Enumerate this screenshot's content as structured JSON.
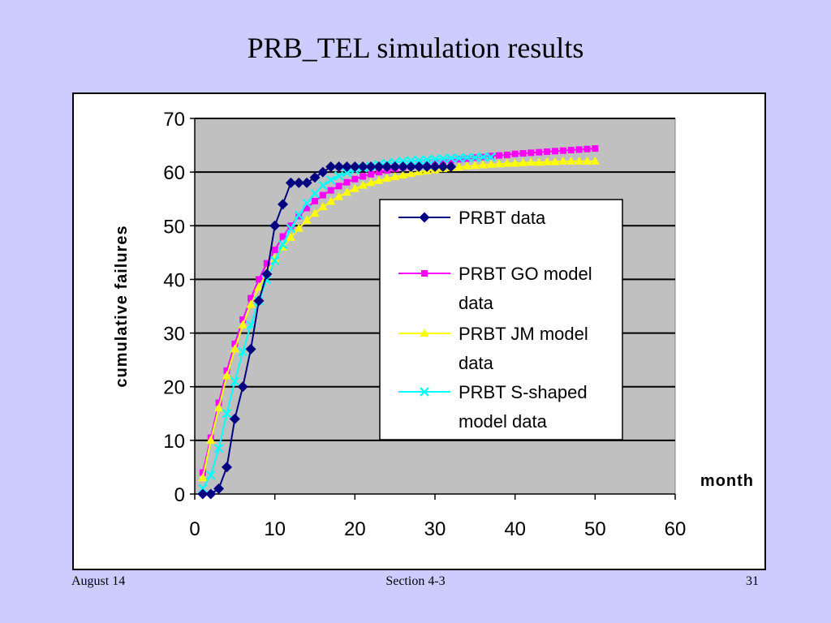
{
  "slide": {
    "title": "PRB_TEL simulation results",
    "footer_left": "August 14",
    "footer_center": "Section 4-3",
    "footer_right": "31"
  },
  "chart_data": {
    "type": "line",
    "title": "",
    "xlabel": "month",
    "ylabel": "cumulative failures",
    "xlim": [
      0,
      60
    ],
    "ylim": [
      0,
      70
    ],
    "xticks": [
      0,
      10,
      20,
      30,
      40,
      50,
      60
    ],
    "yticks": [
      0,
      10,
      20,
      30,
      40,
      50,
      60,
      70
    ],
    "grid": "horizontal",
    "plot_background": "#c0c0c0",
    "legend_position": "right-center",
    "series": [
      {
        "name": "PRBT data",
        "legend_lines": [
          "PRBT data"
        ],
        "color": "#000080",
        "marker": "diamond",
        "x": [
          1,
          2,
          3,
          4,
          5,
          6,
          7,
          8,
          9,
          10,
          11,
          12,
          13,
          14,
          15,
          16,
          17,
          18,
          19,
          20,
          21,
          22,
          23,
          24,
          25,
          26,
          27,
          28,
          29,
          30,
          31,
          32
        ],
        "y": [
          0,
          0,
          1,
          5,
          14,
          20,
          27,
          36,
          41,
          50,
          54,
          58,
          58,
          58,
          59,
          60,
          61,
          61,
          61,
          61,
          61,
          61,
          61,
          61,
          61,
          61,
          61,
          61,
          61,
          61,
          61,
          61
        ]
      },
      {
        "name": "PRBT GO model data",
        "legend_lines": [
          "PRBT GO model",
          "data"
        ],
        "color": "#ff00ff",
        "marker": "square",
        "x": [
          1,
          2,
          3,
          4,
          5,
          6,
          7,
          8,
          9,
          10,
          11,
          12,
          13,
          14,
          15,
          16,
          17,
          18,
          19,
          20,
          21,
          22,
          23,
          24,
          25,
          26,
          27,
          28,
          29,
          30,
          31,
          32,
          33,
          34,
          35,
          36,
          37,
          38,
          39,
          40,
          41,
          42,
          43,
          44,
          45,
          46,
          47,
          48,
          49,
          50
        ],
        "y": [
          4,
          10.5,
          17,
          23,
          28,
          32.5,
          36.5,
          40,
          43,
          45.5,
          48,
          50,
          51.8,
          53.3,
          54.6,
          55.7,
          56.6,
          57.4,
          58.1,
          58.7,
          59.2,
          59.6,
          60,
          60.3,
          60.6,
          60.9,
          61.1,
          61.4,
          61.6,
          61.8,
          62,
          62.2,
          62.4,
          62.5,
          62.7,
          62.8,
          63,
          63.1,
          63.2,
          63.4,
          63.5,
          63.6,
          63.7,
          63.8,
          63.9,
          64,
          64.1,
          64.2,
          64.3,
          64.4
        ]
      },
      {
        "name": "PRBT JM model data",
        "legend_lines": [
          "PRBT JM model",
          "data"
        ],
        "color": "#ffff00",
        "marker": "triangle",
        "x": [
          1,
          2,
          3,
          4,
          5,
          6,
          7,
          8,
          9,
          10,
          11,
          12,
          13,
          14,
          15,
          16,
          17,
          18,
          19,
          20,
          21,
          22,
          23,
          24,
          25,
          26,
          27,
          28,
          29,
          30,
          31,
          32,
          33,
          34,
          35,
          36,
          37,
          38,
          39,
          40,
          41,
          42,
          43,
          44,
          45,
          46,
          47,
          48,
          49,
          50
        ],
        "y": [
          3,
          10,
          16,
          22,
          27,
          31.5,
          35.3,
          38.5,
          41.3,
          43.8,
          46,
          47.8,
          49.5,
          51,
          52.3,
          53.5,
          54.5,
          55.4,
          56.2,
          56.9,
          57.5,
          58,
          58.4,
          58.8,
          59.1,
          59.4,
          59.7,
          60,
          60.2,
          60.4,
          60.6,
          60.8,
          60.9,
          61.1,
          61.2,
          61.3,
          61.4,
          61.5,
          61.6,
          61.6,
          61.7,
          61.8,
          61.8,
          61.9,
          61.9,
          62,
          62,
          62,
          62,
          62
        ]
      },
      {
        "name": "PRBT S-shaped model data",
        "legend_lines": [
          "PRBT S-shaped",
          "model data"
        ],
        "color": "#00ffff",
        "marker": "x",
        "x": [
          1,
          2,
          3,
          4,
          5,
          6,
          7,
          8,
          9,
          10,
          11,
          12,
          13,
          14,
          15,
          16,
          17,
          18,
          19,
          20,
          21,
          22,
          23,
          24,
          25,
          26,
          27,
          28,
          29,
          30,
          31,
          32,
          33,
          34,
          35,
          36,
          37
        ],
        "y": [
          1,
          3.5,
          8.5,
          15,
          21,
          26.5,
          31.5,
          36,
          40,
          43.5,
          46.5,
          49.5,
          52,
          54.2,
          56,
          57.5,
          58.5,
          59.3,
          59.9,
          60.4,
          60.8,
          61.1,
          61.4,
          61.6,
          61.8,
          62,
          62.1,
          62.2,
          62.3,
          62.4,
          62.5,
          62.6,
          62.6,
          62.7,
          62.7,
          62.8,
          62.8
        ]
      }
    ]
  }
}
